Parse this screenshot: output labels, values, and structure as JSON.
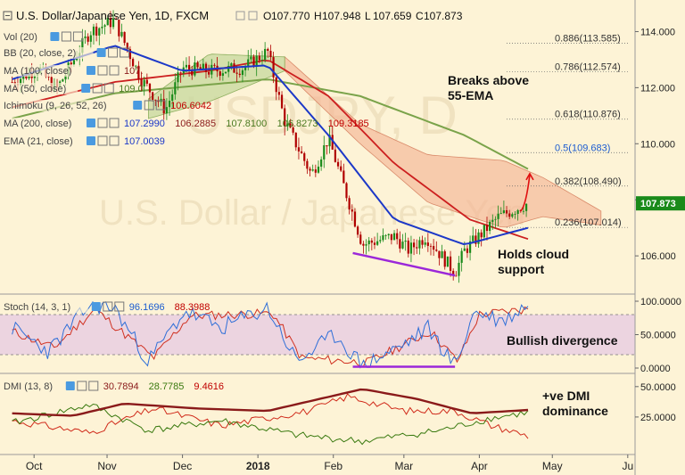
{
  "header": {
    "title": "U.S. Dollar/Japanese Yen, 1D, FXCM",
    "ohlc": [
      {
        "k": "O",
        "v": "107.770"
      },
      {
        "k": "H",
        "v": "107.948"
      },
      {
        "k": "L",
        "v": "107.659"
      },
      {
        "k": "C",
        "v": "107.873"
      }
    ]
  },
  "watermark": {
    "line1": "USDJPY, D",
    "line2": "U.S. Dollar / Japanese Yen"
  },
  "legend": [
    {
      "label": "Vol (20)",
      "values": []
    },
    {
      "label": "BB (20, close, 2)",
      "values": []
    },
    {
      "label": "MA (100, close)",
      "values": [
        {
          "t": "107.",
          "color": "#8a1a1a"
        }
      ]
    },
    {
      "label": "MA (50, close)",
      "values": [
        {
          "t": "109.0",
          "color": "#4a7a20"
        }
      ]
    },
    {
      "label": "Ichimoku (9, 26, 52, 26)",
      "values": [
        {
          "t": "106.6042",
          "color": "#c00000"
        }
      ]
    },
    {
      "label": "MA (200, close)",
      "values": [
        {
          "t": "107.2990",
          "color": "#1c38c8"
        },
        {
          "t": "106.2885",
          "color": "#8a1a1a"
        },
        {
          "t": "107.8100",
          "color": "#4a7a20"
        },
        {
          "t": "106.8273",
          "color": "#4a7a20"
        },
        {
          "t": "109.3185",
          "color": "#c00000"
        }
      ]
    },
    {
      "label": "EMA (21, close)",
      "values": [
        {
          "t": "107.0039",
          "color": "#1c38c8"
        }
      ]
    }
  ],
  "stoch_legend": {
    "label": "Stoch (14, 3, 1)",
    "values": [
      {
        "t": "96.1696",
        "color": "#1c5cd0"
      },
      {
        "t": "88.3988",
        "color": "#c00000"
      }
    ]
  },
  "dmi_legend": {
    "label": "DMI (13, 8)",
    "values": [
      {
        "t": "30.7894",
        "color": "#8a1a1a"
      },
      {
        "t": "28.7785",
        "color": "#3a7a10"
      },
      {
        "t": "9.4616",
        "color": "#c00000"
      }
    ]
  },
  "price_axis": {
    "ticks": [
      "114.000",
      "112.000",
      "110.000",
      "108.000",
      "106.000"
    ],
    "current": "107.873"
  },
  "stoch_axis": {
    "ticks": [
      "100.0000",
      "50.0000",
      "0.0000"
    ]
  },
  "dmi_axis": {
    "ticks": [
      "50.0000",
      "25.0000"
    ]
  },
  "time_axis": {
    "labels": [
      "Oct",
      "Nov",
      "Dec",
      "2018",
      "Feb",
      "Mar",
      "Apr",
      "May",
      "Ju"
    ]
  },
  "fib_levels": [
    {
      "label": "0.886(113.585)",
      "value": 113.585,
      "color": "#333333"
    },
    {
      "label": "0.786(112.574)",
      "value": 112.574,
      "color": "#333333"
    },
    {
      "label": "0.618(110.876)",
      "value": 110.876,
      "color": "#333333"
    },
    {
      "label": "0.5(109.683)",
      "value": 109.683,
      "color": "#1c5cd0"
    },
    {
      "label": "0.382(108.490)",
      "value": 108.49,
      "color": "#333333"
    },
    {
      "label": "0.236(107.014)",
      "value": 107.014,
      "color": "#333333"
    }
  ],
  "annotations": {
    "breaks_line1": "Breaks above",
    "breaks_line2": "55-EMA",
    "holds_line1": "Holds cloud",
    "holds_line2": "support",
    "bullish_divergence": "Bullish divergence",
    "dmi_line1": "+ve DMI",
    "dmi_line2": "dominance"
  },
  "colors": {
    "background": "#fdf3d6",
    "up_candle": "#1a8a1a",
    "down_candle": "#b00000",
    "ema21": "#1c38c8",
    "ma50": "#cc1f1f",
    "ma100": "#7aa34a",
    "cloud": "#f4b99a",
    "cloud_bull": "#c9d9a0",
    "divergence": "#9b27d9",
    "current_price_bg": "#1a8a1a"
  },
  "chart_data": {
    "type": "candlestick",
    "title": "U.S. Dollar/Japanese Yen, 1D, FXCM",
    "x_months": [
      "Oct",
      "Nov",
      "Dec",
      "2018",
      "Feb",
      "Mar",
      "Apr",
      "May",
      "Ju"
    ],
    "ylim": [
      104.7,
      115.0
    ],
    "price_path": [
      [
        "2017-09-25",
        112.2
      ],
      [
        "2017-10-06",
        112.7
      ],
      [
        "2017-10-13",
        111.9
      ],
      [
        "2017-10-27",
        114.0
      ],
      [
        "2017-11-06",
        114.4
      ],
      [
        "2017-11-17",
        112.3
      ],
      [
        "2017-11-27",
        111.2
      ],
      [
        "2017-12-04",
        112.7
      ],
      [
        "2017-12-15",
        112.6
      ],
      [
        "2017-12-29",
        112.7
      ],
      [
        "2018-01-08",
        113.3
      ],
      [
        "2018-01-15",
        110.8
      ],
      [
        "2018-01-26",
        108.9
      ],
      [
        "2018-02-02",
        110.2
      ],
      [
        "2018-02-16",
        106.4
      ],
      [
        "2018-03-01",
        106.7
      ],
      [
        "2018-03-07",
        106.2
      ],
      [
        "2018-03-14",
        106.7
      ],
      [
        "2018-03-26",
        105.4
      ],
      [
        "2018-03-30",
        106.2
      ],
      [
        "2018-04-13",
        107.4
      ],
      [
        "2018-04-25",
        107.873
      ]
    ],
    "ema21": [
      [
        "2017-09-25",
        112.3
      ],
      [
        "2017-11-06",
        113.5
      ],
      [
        "2017-12-04",
        112.6
      ],
      [
        "2018-01-08",
        112.8
      ],
      [
        "2018-02-02",
        110.3
      ],
      [
        "2018-03-01",
        107.3
      ],
      [
        "2018-03-30",
        106.4
      ],
      [
        "2018-04-25",
        107.0
      ]
    ],
    "ma50": [
      [
        "2017-09-25",
        111.3
      ],
      [
        "2017-11-06",
        112.2
      ],
      [
        "2017-12-15",
        112.6
      ],
      [
        "2018-01-08",
        113.0
      ],
      [
        "2018-02-02",
        111.7
      ],
      [
        "2018-03-01",
        109.3
      ],
      [
        "2018-04-01",
        107.3
      ],
      [
        "2018-04-25",
        106.6
      ]
    ],
    "ma100": [
      [
        "2017-09-25",
        110.9
      ],
      [
        "2017-11-06",
        111.8
      ],
      [
        "2018-01-08",
        112.3
      ],
      [
        "2018-02-15",
        111.7
      ],
      [
        "2018-03-30",
        110.3
      ],
      [
        "2018-04-25",
        109.1
      ]
    ],
    "cloud_top": [
      [
        "2018-01-15",
        113.1
      ],
      [
        "2018-02-15",
        110.7
      ],
      [
        "2018-03-15",
        109.6
      ],
      [
        "2018-04-15",
        109.4
      ],
      [
        "2018-05-01",
        108.8
      ],
      [
        "2018-05-25",
        107.6
      ]
    ],
    "cloud_bottom": [
      [
        "2018-01-15",
        112.6
      ],
      [
        "2018-02-15",
        110.0
      ],
      [
        "2018-03-15",
        107.9
      ],
      [
        "2018-04-15",
        107.0
      ],
      [
        "2018-05-01",
        107.4
      ],
      [
        "2018-05-25",
        107.1
      ]
    ],
    "stoch_k": [
      [
        "2017-09-25",
        60
      ],
      [
        "2017-10-10",
        25
      ],
      [
        "2017-10-27",
        95
      ],
      [
        "2017-11-06",
        90
      ],
      [
        "2017-11-20",
        10
      ],
      [
        "2017-12-05",
        85
      ],
      [
        "2017-12-20",
        60
      ],
      [
        "2018-01-08",
        90
      ],
      [
        "2018-01-20",
        10
      ],
      [
        "2018-02-05",
        50
      ],
      [
        "2018-02-16",
        3
      ],
      [
        "2018-03-05",
        35
      ],
      [
        "2018-03-15",
        60
      ],
      [
        "2018-03-26",
        3
      ],
      [
        "2018-04-03",
        85
      ],
      [
        "2018-04-15",
        70
      ],
      [
        "2018-04-25",
        96.1696
      ]
    ],
    "stoch_d": [
      [
        "2017-09-25",
        55
      ],
      [
        "2017-10-12",
        30
      ],
      [
        "2017-10-29",
        88
      ],
      [
        "2017-11-22",
        15
      ],
      [
        "2017-12-07",
        78
      ],
      [
        "2018-01-10",
        82
      ],
      [
        "2018-01-22",
        15
      ],
      [
        "2018-02-18",
        8
      ],
      [
        "2018-03-16",
        55
      ],
      [
        "2018-03-27",
        10
      ],
      [
        "2018-04-05",
        80
      ],
      [
        "2018-04-25",
        88.3988
      ]
    ],
    "adx": [
      [
        "2017-09-25",
        28
      ],
      [
        "2017-10-20",
        26
      ],
      [
        "2017-11-10",
        36
      ],
      [
        "2017-12-10",
        32
      ],
      [
        "2018-01-08",
        30
      ],
      [
        "2018-02-16",
        48
      ],
      [
        "2018-03-10",
        40
      ],
      [
        "2018-04-02",
        28
      ],
      [
        "2018-04-25",
        30.7894
      ]
    ],
    "plus_di": [
      [
        "2017-09-25",
        20
      ],
      [
        "2017-10-27",
        35
      ],
      [
        "2017-11-20",
        14
      ],
      [
        "2017-12-20",
        22
      ],
      [
        "2018-01-20",
        10
      ],
      [
        "2018-02-16",
        5
      ],
      [
        "2018-03-20",
        14
      ],
      [
        "2018-04-10",
        24
      ],
      [
        "2018-04-25",
        28.7785
      ]
    ],
    "minus_di": [
      [
        "2017-09-25",
        22
      ],
      [
        "2017-10-27",
        12
      ],
      [
        "2017-11-22",
        32
      ],
      [
        "2017-12-20",
        18
      ],
      [
        "2018-01-25",
        30
      ],
      [
        "2018-02-10",
        42
      ],
      [
        "2018-03-05",
        30
      ],
      [
        "2018-03-26",
        30
      ],
      [
        "2018-04-10",
        18
      ],
      [
        "2018-04-25",
        9.4616
      ]
    ],
    "divergence": {
      "price": [
        [
          "2018-02-12",
          106.1
        ],
        [
          "2018-03-26",
          105.3
        ]
      ],
      "stoch": [
        [
          "2018-02-12",
          2
        ],
        [
          "2018-03-26",
          2
        ]
      ]
    },
    "arrow_target": [
      "2018-04-25",
      108.9
    ]
  }
}
